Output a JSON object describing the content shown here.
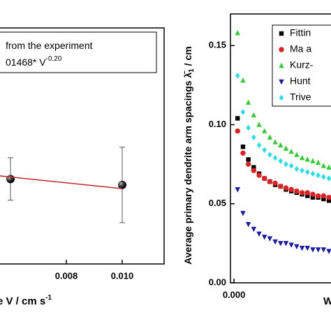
{
  "chart_data": [
    {
      "type": "scatter",
      "x_label": "e V / cm s",
      "x_label_sup": "-1",
      "xlim": [
        0.004,
        0.0115
      ],
      "xticks": [
        {
          "value": 0.008,
          "label": "0.008"
        },
        {
          "value": 0.01,
          "label": "0.010"
        }
      ],
      "ylim": [
        0.005,
        0.105
      ],
      "series": [
        {
          "name": "from the experiment",
          "color": "#000000",
          "marker": "sphere",
          "x": [
            0.006,
            0.01
          ],
          "values": [
            0.041,
            0.0385
          ],
          "errors": [
            0.009,
            0.016
          ]
        },
        {
          "name": "01468* V",
          "name_sup": "-0.20",
          "color": "#c0282c",
          "marker": "line",
          "x": [
            0.004,
            0.01
          ],
          "values": [
            0.0443,
            0.0369
          ]
        }
      ]
    },
    {
      "type": "scatter",
      "y_label": "Average primary dendrite arm spacings λ̄",
      "y_label_sub": "1",
      "y_label_end": " / cm",
      "x_label": "W",
      "xlim": [
        -0.0002,
        0.0115
      ],
      "xticks": [
        {
          "value": 0,
          "label": "0.000"
        }
      ],
      "ylim": [
        0,
        0.17
      ],
      "yticks": [
        {
          "value": 0,
          "label": "0.00"
        },
        {
          "value": 0.05,
          "label": "0.05"
        },
        {
          "value": 0.1,
          "label": "0.10"
        },
        {
          "value": 0.15,
          "label": "0.15"
        }
      ],
      "x": [
        0.0002,
        0.0005,
        0.0008,
        0.0011,
        0.0014,
        0.0017,
        0.002,
        0.0023,
        0.0026,
        0.0029,
        0.0032,
        0.0035,
        0.0038,
        0.0041,
        0.0044,
        0.0047,
        0.005,
        0.0053
      ],
      "series": [
        {
          "name": "Fittin",
          "color": "#000000",
          "marker": "square",
          "values": [
            0.104,
            0.086,
            0.078,
            0.073,
            0.069,
            0.066,
            0.064,
            0.062,
            0.061,
            0.059,
            0.058,
            0.057,
            0.056,
            0.055,
            0.054,
            0.054,
            0.053,
            0.052
          ]
        },
        {
          "name": "Ma a",
          "color": "#e02020",
          "marker": "circle",
          "values": [
            0.096,
            0.082,
            0.075,
            0.071,
            0.068,
            0.066,
            0.064,
            0.063,
            0.061,
            0.06,
            0.059,
            0.058,
            0.057,
            0.057,
            0.056,
            0.055,
            0.055,
            0.054
          ]
        },
        {
          "name": "Kurz-",
          "color": "#33cc33",
          "marker": "triangle-up",
          "values": [
            0.158,
            0.128,
            0.114,
            0.106,
            0.1,
            0.096,
            0.092,
            0.089,
            0.087,
            0.085,
            0.083,
            0.081,
            0.079,
            0.078,
            0.077,
            0.076,
            0.074,
            0.073
          ]
        },
        {
          "name": "Hunt",
          "color": "#1a1aa8",
          "marker": "triangle-down",
          "values": [
            0.059,
            0.044,
            0.037,
            0.034,
            0.031,
            0.029,
            0.028,
            0.026,
            0.025,
            0.025,
            0.024,
            0.023,
            0.022,
            0.022,
            0.021,
            0.021,
            0.021,
            0.02
          ]
        },
        {
          "name": "Trive",
          "color": "#22e0e8",
          "marker": "diamond",
          "values": [
            0.131,
            0.108,
            0.098,
            0.092,
            0.087,
            0.084,
            0.081,
            0.079,
            0.077,
            0.075,
            0.074,
            0.072,
            0.071,
            0.07,
            0.069,
            0.068,
            0.067,
            0.066
          ]
        }
      ]
    }
  ]
}
